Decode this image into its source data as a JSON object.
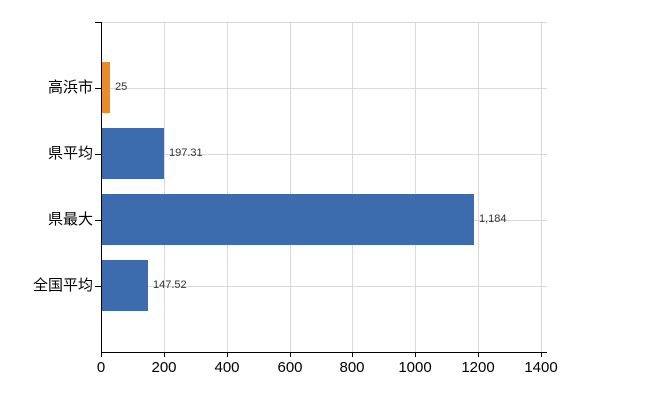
{
  "chart_data": {
    "type": "bar",
    "orientation": "horizontal",
    "title": "",
    "xlabel": "",
    "ylabel": "",
    "categories": [
      "高浜市",
      "県平均",
      "県最大",
      "全国平均"
    ],
    "values": [
      25,
      197.31,
      1184,
      147.52
    ],
    "value_labels": [
      "25",
      "197.31",
      "1,184",
      "147.52"
    ],
    "series_colors": [
      "#ea8b2e",
      "#3d6cae",
      "#3d6cae",
      "#3d6cae"
    ],
    "xlim": [
      0,
      1400
    ],
    "x_ticks": [
      0,
      200,
      400,
      600,
      800,
      1000,
      1200,
      1400
    ],
    "x_tick_labels": [
      "0",
      "200",
      "400",
      "600",
      "800",
      "1000",
      "1200",
      "1400"
    ],
    "grid": "on",
    "legend": "none"
  },
  "colors": {
    "bar_orange": "#ea8b2e",
    "bar_blue": "#3d6cae",
    "grid": "#d9d9d9",
    "axis": "#000000",
    "category_text": "#000000",
    "tick_text": "#000000",
    "value_text": "#333333",
    "background": "#ffffff"
  }
}
